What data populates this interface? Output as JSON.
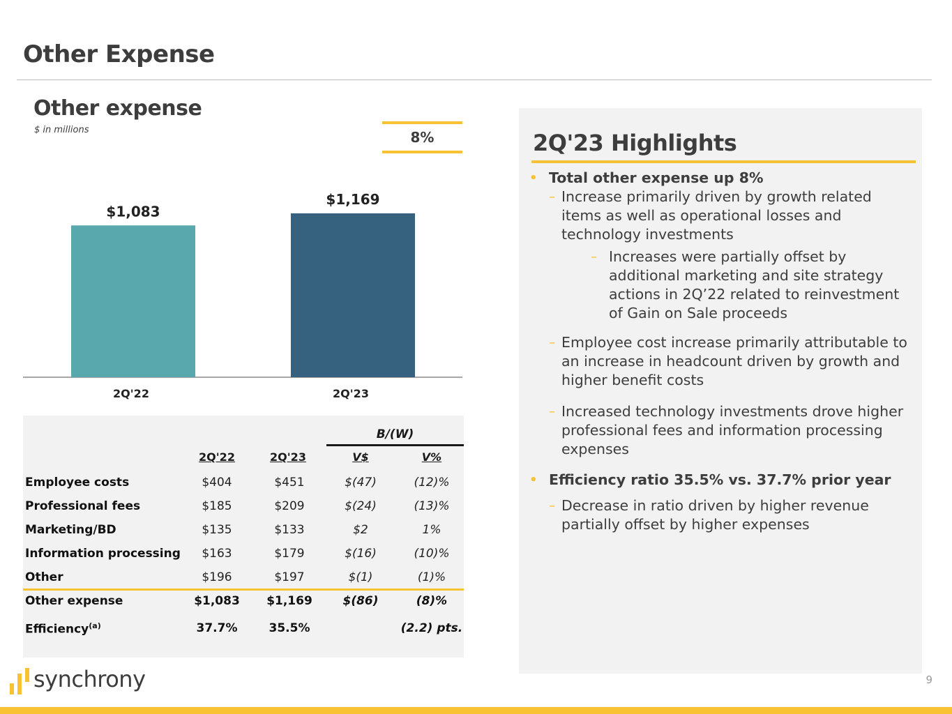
{
  "page": {
    "title": "Other Expense",
    "page_number": "9"
  },
  "chart": {
    "title": "Other expense",
    "subtitle": "$ in millions",
    "growth_label": "8%"
  },
  "chart_data": {
    "type": "bar",
    "categories": [
      "2Q'22",
      "2Q'23"
    ],
    "values": [
      1083,
      1169
    ],
    "value_labels": [
      "$1,083",
      "$1,169"
    ],
    "colors": [
      "#59a8ae",
      "#36627f"
    ],
    "ylim": [
      0,
      1169
    ],
    "title": "Other expense",
    "ylabel": "$ in millions"
  },
  "table": {
    "group_header": "B/(W)",
    "columns": [
      "2Q'22",
      "2Q'23",
      "V$",
      "V%"
    ],
    "rows": [
      {
        "label": "Employee costs",
        "values": [
          "$404",
          "$451",
          "$(47)",
          "(12)%"
        ]
      },
      {
        "label": "Professional fees",
        "values": [
          "$185",
          "$209",
          "$(24)",
          "(13)%"
        ]
      },
      {
        "label": "Marketing/BD",
        "values": [
          "$135",
          "$133",
          "$2",
          "1%"
        ]
      },
      {
        "label": "Information processing",
        "values": [
          "$163",
          "$179",
          "$(16)",
          "(10)%"
        ]
      },
      {
        "label": "Other",
        "values": [
          "$196",
          "$197",
          "$(1)",
          "(1)%"
        ]
      }
    ],
    "total": {
      "label": "Other expense",
      "values": [
        "$1,083",
        "$1,169",
        "$(86)",
        "(8)%"
      ]
    },
    "efficiency": {
      "label": "Efficiency",
      "footnote": "(a)",
      "values": [
        "37.7%",
        "35.5%",
        "",
        "(2.2) pts."
      ]
    }
  },
  "highlights": {
    "title": "2Q'23 Highlights",
    "b1": "Total other expense up 8%",
    "b1a": "Increase primarily driven by growth related items as well as operational losses and technology investments",
    "b1a_sub": "Increases were partially offset by additional marketing and site strategy actions in 2Q’22 related to reinvestment of Gain on Sale proceeds",
    "b1b": "Employee cost increase primarily attributable to an increase in headcount driven by growth and higher benefit costs",
    "b1c": "Increased technology investments drove higher professional fees and information processing expenses",
    "b2": "Efficiency ratio 35.5% vs. 37.7% prior year",
    "b2a": "Decrease in ratio driven by higher revenue partially offset by higher expenses"
  },
  "brand": {
    "logo_text": "synchrony",
    "accent": "#f8c233"
  }
}
